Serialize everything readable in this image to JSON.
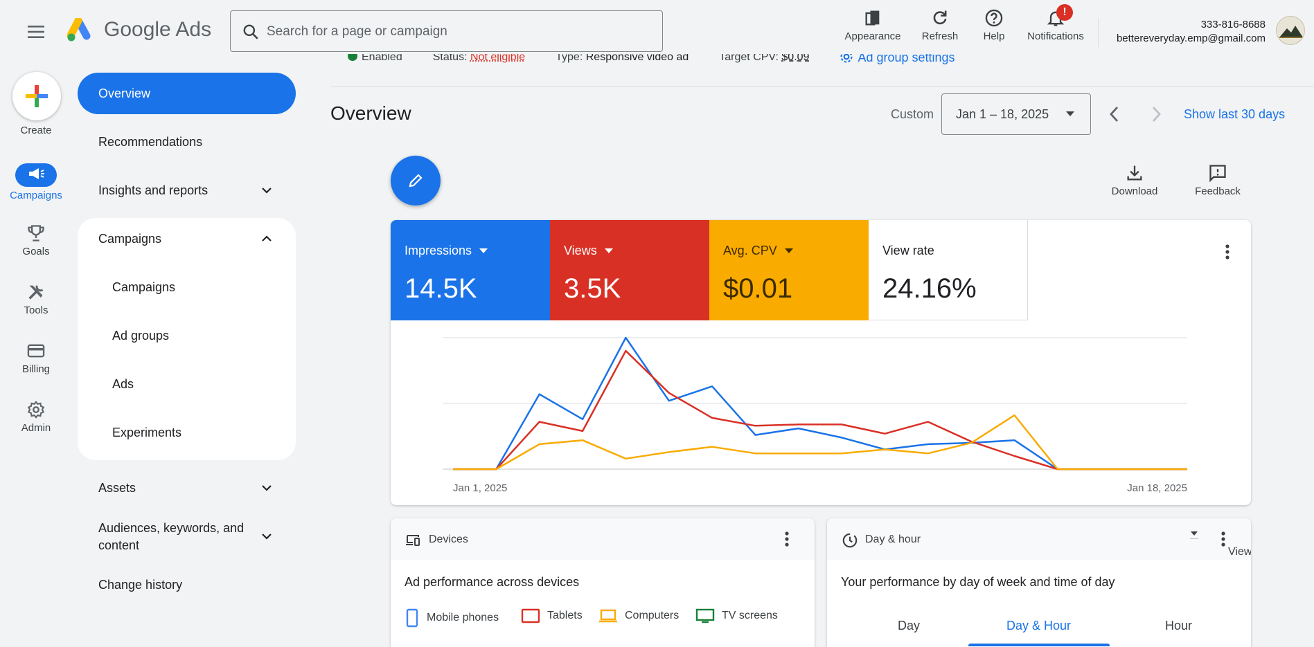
{
  "app": {
    "brand": "Google Ads"
  },
  "search": {
    "placeholder": "Search for a page or campaign"
  },
  "toolbar": {
    "appearance": "Appearance",
    "refresh": "Refresh",
    "help": "Help",
    "notifications": "Notifications",
    "notification_badge": "!"
  },
  "account": {
    "phone": "333-816-8688",
    "email": "bettereveryday.emp@gmail.com"
  },
  "rail": {
    "create": "Create",
    "campaigns": "Campaigns",
    "goals": "Goals",
    "tools": "Tools",
    "billing": "Billing",
    "admin": "Admin"
  },
  "nav": {
    "overview": "Overview",
    "recommendations": "Recommendations",
    "insights": "Insights and reports",
    "campaigns": "Campaigns",
    "sub": [
      "Campaigns",
      "Ad groups",
      "Ads",
      "Experiments"
    ],
    "assets": "Assets",
    "audiences_line1": "Audiences, keywords, and",
    "audiences_line2": "content",
    "change_history": "Change history"
  },
  "strip": {
    "enabled": "Enabled",
    "status_label": "Status:",
    "status_value": "Not eligible",
    "type_label": "Type:",
    "type_value": "Responsive video ad",
    "target_label": "Target CPV:",
    "target_value": "$0.09",
    "settings_link": "Ad group settings"
  },
  "overview": {
    "title": "Overview",
    "custom_label": "Custom",
    "date_range": "Jan 1 – 18, 2025",
    "show_last_30": "Show last 30 days",
    "download": "Download",
    "feedback": "Feedback"
  },
  "metrics": [
    {
      "label": "Impressions",
      "value": "14.5K",
      "color": "#1a73e8"
    },
    {
      "label": "Views",
      "value": "3.5K",
      "color": "#d93025"
    },
    {
      "label": "Avg. CPV",
      "value": "$0.01",
      "color": "#f9ab00"
    },
    {
      "label": "View rate",
      "value": "24.16%",
      "color": "#ffffff"
    }
  ],
  "chart_data": {
    "type": "line",
    "x_start_label": "Jan 1, 2025",
    "x_end_label": "Jan 18, 2025",
    "grid": true,
    "series": [
      {
        "name": "Impressions",
        "color": "#1a73e8",
        "values": [
          0,
          0,
          57,
          38,
          100,
          52,
          63,
          26,
          31,
          24,
          15,
          19,
          20,
          22,
          0,
          0,
          0,
          0
        ]
      },
      {
        "name": "Views",
        "color": "#d93025",
        "values": [
          0,
          0,
          36,
          29,
          90,
          58,
          39,
          33,
          34,
          34,
          27,
          36,
          21,
          10,
          0,
          0,
          0,
          0
        ]
      },
      {
        "name": "Avg. CPV",
        "color": "#f9ab00",
        "values": [
          0,
          0,
          19,
          22,
          8,
          13,
          17,
          12,
          12,
          12,
          15,
          12,
          20,
          41,
          0,
          0,
          0,
          0
        ]
      }
    ]
  },
  "devices_card": {
    "title": "Devices",
    "subtitle": "Ad performance across devices",
    "legend": [
      "Mobile phones",
      "Tablets",
      "Computers",
      "TV screens"
    ]
  },
  "dayhour_card": {
    "title": "Day & hour",
    "metric_select": "Views",
    "subtitle": "Your performance by day of week and time of day",
    "tabs": [
      "Day",
      "Day & Hour",
      "Hour"
    ]
  }
}
